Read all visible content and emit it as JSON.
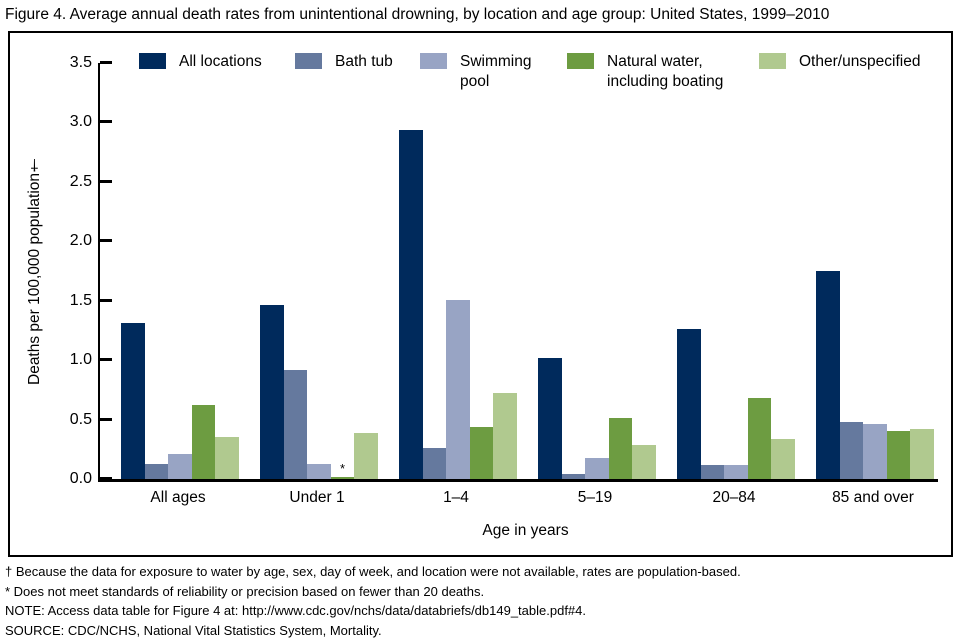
{
  "chart_data": {
    "type": "bar",
    "title": "Figure 4. Average annual death rates from unintentional drowning, by location and age group: United States, 1999–2010",
    "xlabel": "Age in years",
    "ylabel": "Deaths per 100,000 population†",
    "ylim": [
      0,
      3.5
    ],
    "ytick_step": 0.5,
    "yticks": [
      "0.0",
      "0.5",
      "1.0",
      "1.5",
      "2.0",
      "2.5",
      "3.0",
      "3.5"
    ],
    "grid": false,
    "legend_position": "top",
    "categories": [
      "All ages",
      "Under 1",
      "1–4",
      "5–19",
      "20–84",
      "85 and over"
    ],
    "series": [
      {
        "name": "All locations",
        "color": "#002a5c",
        "values": [
          1.31,
          1.46,
          2.94,
          1.02,
          1.26,
          1.75
        ]
      },
      {
        "name": "Bath tub",
        "color": "#65799e",
        "values": [
          0.13,
          0.92,
          0.26,
          0.04,
          0.12,
          0.48
        ]
      },
      {
        "name": "Swimming pool",
        "color": "#98a4c4",
        "values": [
          0.21,
          0.13,
          1.51,
          0.18,
          0.12,
          0.46
        ]
      },
      {
        "name": "Natural water, including boating",
        "color": "#6d9c41",
        "values": [
          0.62,
          0.02,
          0.44,
          0.51,
          0.68,
          0.4
        ],
        "flags": [
          "",
          "*",
          "",
          "",
          "",
          ""
        ]
      },
      {
        "name": "Other/unspecified",
        "color": "#b0c98f",
        "values": [
          0.35,
          0.39,
          0.72,
          0.29,
          0.34,
          0.42
        ]
      }
    ],
    "annotations": [
      {
        "text": "*",
        "meaning": "Does not meet standards of reliability or precision based on fewer than 20 deaths."
      }
    ]
  },
  "footnotes": {
    "lines": [
      "† Because the data for exposure to water by age, sex, day of week, and location were not available, rates are population-based.",
      "* Does not meet standards of reliability or precision based on fewer than 20 deaths.",
      "NOTE: Access data table for Figure 4 at: http://www.cdc.gov/nchs/data/databriefs/db149_table.pdf#4.",
      "SOURCE: CDC/NCHS, National Vital Statistics System, Mortality."
    ]
  }
}
